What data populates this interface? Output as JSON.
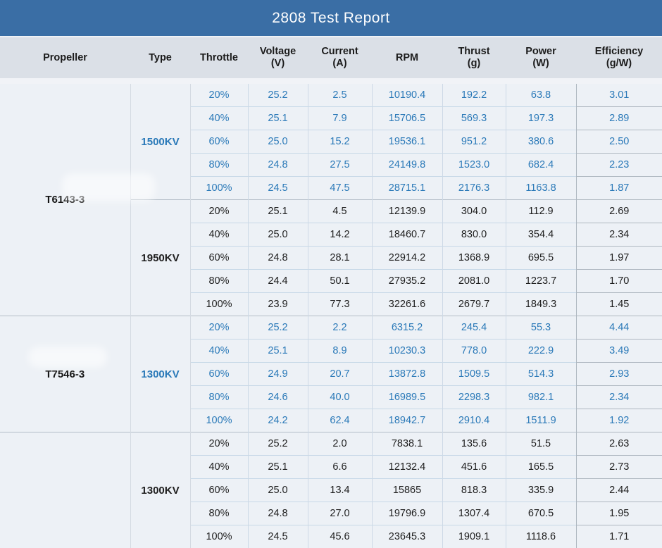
{
  "title": "2808 Test Report",
  "columns": [
    {
      "label": "Propeller",
      "sub": ""
    },
    {
      "label": "Type",
      "sub": ""
    },
    {
      "label": "Throttle",
      "sub": ""
    },
    {
      "label": "Voltage",
      "sub": "(V)"
    },
    {
      "label": "Current",
      "sub": "(A)"
    },
    {
      "label": "RPM",
      "sub": ""
    },
    {
      "label": "Thrust",
      "sub": "(g)"
    },
    {
      "label": "Power",
      "sub": "(W)"
    },
    {
      "label": "Efficiency",
      "sub": "(g/W)"
    }
  ],
  "colors": {
    "title_bar": "#3a6ea5",
    "title_text": "#ffffff",
    "header_bg": "#dbe0e7",
    "body_bg": "#edf1f6",
    "grid_blue": "#c7d8e7",
    "grid_gray": "#b3bdc7",
    "text_blue": "#2a79b8",
    "text_dark": "#1e1e1e"
  },
  "propeller_blocks": [
    {
      "propeller": "T6143-3",
      "type_groups": [
        {
          "type": "1500KV",
          "text_style": "blue",
          "rows": [
            {
              "throttle": "20%",
              "voltage": "25.2",
              "current": "2.5",
              "rpm": "10190.4",
              "thrust": "192.2",
              "power": "63.8",
              "efficiency": "3.01"
            },
            {
              "throttle": "40%",
              "voltage": "25.1",
              "current": "7.9",
              "rpm": "15706.5",
              "thrust": "569.3",
              "power": "197.3",
              "efficiency": "2.89"
            },
            {
              "throttle": "60%",
              "voltage": "25.0",
              "current": "15.2",
              "rpm": "19536.1",
              "thrust": "951.2",
              "power": "380.6",
              "efficiency": "2.50"
            },
            {
              "throttle": "80%",
              "voltage": "24.8",
              "current": "27.5",
              "rpm": "24149.8",
              "thrust": "1523.0",
              "power": "682.4",
              "efficiency": "2.23"
            },
            {
              "throttle": "100%",
              "voltage": "24.5",
              "current": "47.5",
              "rpm": "28715.1",
              "thrust": "2176.3",
              "power": "1163.8",
              "efficiency": "1.87"
            }
          ]
        },
        {
          "type": "1950KV",
          "text_style": "dark",
          "rows": [
            {
              "throttle": "20%",
              "voltage": "25.1",
              "current": "4.5",
              "rpm": "12139.9",
              "thrust": "304.0",
              "power": "112.9",
              "efficiency": "2.69"
            },
            {
              "throttle": "40%",
              "voltage": "25.0",
              "current": "14.2",
              "rpm": "18460.7",
              "thrust": "830.0",
              "power": "354.4",
              "efficiency": "2.34"
            },
            {
              "throttle": "60%",
              "voltage": "24.8",
              "current": "28.1",
              "rpm": "22914.2",
              "thrust": "1368.9",
              "power": "695.5",
              "efficiency": "1.97"
            },
            {
              "throttle": "80%",
              "voltage": "24.4",
              "current": "50.1",
              "rpm": "27935.2",
              "thrust": "2081.0",
              "power": "1223.7",
              "efficiency": "1.70"
            },
            {
              "throttle": "100%",
              "voltage": "23.9",
              "current": "77.3",
              "rpm": "32261.6",
              "thrust": "2679.7",
              "power": "1849.3",
              "efficiency": "1.45"
            }
          ]
        }
      ]
    },
    {
      "propeller": "T7546-3",
      "type_groups": [
        {
          "type": "1300KV",
          "text_style": "blue",
          "rows": [
            {
              "throttle": "20%",
              "voltage": "25.2",
              "current": "2.2",
              "rpm": "6315.2",
              "thrust": "245.4",
              "power": "55.3",
              "efficiency": "4.44"
            },
            {
              "throttle": "40%",
              "voltage": "25.1",
              "current": "8.9",
              "rpm": "10230.3",
              "thrust": "778.0",
              "power": "222.9",
              "efficiency": "3.49"
            },
            {
              "throttle": "60%",
              "voltage": "24.9",
              "current": "20.7",
              "rpm": "13872.8",
              "thrust": "1509.5",
              "power": "514.3",
              "efficiency": "2.93"
            },
            {
              "throttle": "80%",
              "voltage": "24.6",
              "current": "40.0",
              "rpm": "16989.5",
              "thrust": "2298.3",
              "power": "982.1",
              "efficiency": "2.34"
            },
            {
              "throttle": "100%",
              "voltage": "24.2",
              "current": "62.4",
              "rpm": "18942.7",
              "thrust": "2910.4",
              "power": "1511.9",
              "efficiency": "1.92"
            }
          ]
        }
      ]
    },
    {
      "propeller": "",
      "type_groups": [
        {
          "type": "1300KV",
          "text_style": "dark",
          "rows": [
            {
              "throttle": "20%",
              "voltage": "25.2",
              "current": "2.0",
              "rpm": "7838.1",
              "thrust": "135.6",
              "power": "51.5",
              "efficiency": "2.63"
            },
            {
              "throttle": "40%",
              "voltage": "25.1",
              "current": "6.6",
              "rpm": "12132.4",
              "thrust": "451.6",
              "power": "165.5",
              "efficiency": "2.73"
            },
            {
              "throttle": "60%",
              "voltage": "25.0",
              "current": "13.4",
              "rpm": "15865",
              "thrust": "818.3",
              "power": "335.9",
              "efficiency": "2.44"
            },
            {
              "throttle": "80%",
              "voltage": "24.8",
              "current": "27.0",
              "rpm": "19796.9",
              "thrust": "1307.4",
              "power": "670.5",
              "efficiency": "1.95"
            },
            {
              "throttle": "100%",
              "voltage": "24.5",
              "current": "45.6",
              "rpm": "23645.3",
              "thrust": "1909.1",
              "power": "1118.6",
              "efficiency": "1.71"
            }
          ]
        }
      ]
    }
  ],
  "chart_data": {
    "type": "table",
    "title": "2808 Test Report",
    "columns": [
      "Propeller",
      "Type",
      "Throttle",
      "Voltage (V)",
      "Current (A)",
      "RPM",
      "Thrust (g)",
      "Power (W)",
      "Efficiency (g/W)"
    ],
    "rows": [
      [
        "T6143-3",
        "1500KV",
        "20%",
        25.2,
        2.5,
        10190.4,
        192.2,
        63.8,
        3.01
      ],
      [
        "T6143-3",
        "1500KV",
        "40%",
        25.1,
        7.9,
        15706.5,
        569.3,
        197.3,
        2.89
      ],
      [
        "T6143-3",
        "1500KV",
        "60%",
        25.0,
        15.2,
        19536.1,
        951.2,
        380.6,
        2.5
      ],
      [
        "T6143-3",
        "1500KV",
        "80%",
        24.8,
        27.5,
        24149.8,
        1523.0,
        682.4,
        2.23
      ],
      [
        "T6143-3",
        "1500KV",
        "100%",
        24.5,
        47.5,
        28715.1,
        2176.3,
        1163.8,
        1.87
      ],
      [
        "T6143-3",
        "1950KV",
        "20%",
        25.1,
        4.5,
        12139.9,
        304.0,
        112.9,
        2.69
      ],
      [
        "T6143-3",
        "1950KV",
        "40%",
        25.0,
        14.2,
        18460.7,
        830.0,
        354.4,
        2.34
      ],
      [
        "T6143-3",
        "1950KV",
        "60%",
        24.8,
        28.1,
        22914.2,
        1368.9,
        695.5,
        1.97
      ],
      [
        "T6143-3",
        "1950KV",
        "80%",
        24.4,
        50.1,
        27935.2,
        2081.0,
        1223.7,
        1.7
      ],
      [
        "T6143-3",
        "1950KV",
        "100%",
        23.9,
        77.3,
        32261.6,
        2679.7,
        1849.3,
        1.45
      ],
      [
        "T7546-3",
        "1300KV",
        "20%",
        25.2,
        2.2,
        6315.2,
        245.4,
        55.3,
        4.44
      ],
      [
        "T7546-3",
        "1300KV",
        "40%",
        25.1,
        8.9,
        10230.3,
        778.0,
        222.9,
        3.49
      ],
      [
        "T7546-3",
        "1300KV",
        "60%",
        24.9,
        20.7,
        13872.8,
        1509.5,
        514.3,
        2.93
      ],
      [
        "T7546-3",
        "1300KV",
        "80%",
        24.6,
        40.0,
        16989.5,
        2298.3,
        982.1,
        2.34
      ],
      [
        "T7546-3",
        "1300KV",
        "100%",
        24.2,
        62.4,
        18942.7,
        2910.4,
        1511.9,
        1.92
      ],
      [
        "",
        "1300KV",
        "20%",
        25.2,
        2.0,
        7838.1,
        135.6,
        51.5,
        2.63
      ],
      [
        "",
        "1300KV",
        "40%",
        25.1,
        6.6,
        12132.4,
        451.6,
        165.5,
        2.73
      ],
      [
        "",
        "1300KV",
        "60%",
        25.0,
        13.4,
        15865,
        818.3,
        335.9,
        2.44
      ],
      [
        "",
        "1300KV",
        "80%",
        24.8,
        27.0,
        19796.9,
        1307.4,
        670.5,
        1.95
      ],
      [
        "",
        "1300KV",
        "100%",
        24.5,
        45.6,
        23645.3,
        1909.1,
        1118.6,
        1.71
      ]
    ]
  }
}
